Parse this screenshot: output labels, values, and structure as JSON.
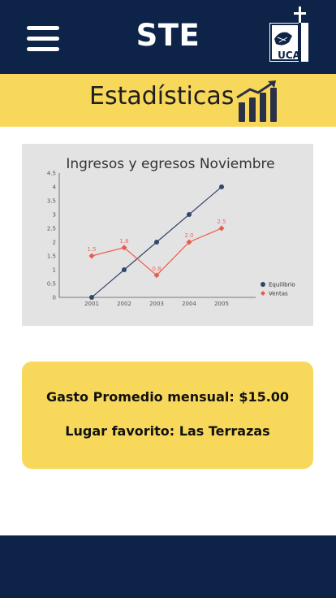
{
  "header": {
    "title": "STE",
    "logo_text": "UCA",
    "colors": {
      "navy": "#0d2347",
      "yellow": "#f8d85b"
    }
  },
  "section": {
    "title": "Estadísticas",
    "icon": "bar-chart-growth-icon"
  },
  "chart_data": {
    "type": "line",
    "title": "Ingresos y egresos Noviembre",
    "categories": [
      "2001",
      "2002",
      "2003",
      "2004",
      "2005"
    ],
    "ylim": [
      0,
      4.5
    ],
    "yticks": [
      "0",
      "0.5",
      "1",
      "1.5",
      "2",
      "2.5",
      "3",
      "3.5",
      "4",
      "4.5"
    ],
    "grid": false,
    "legend": "right",
    "series": [
      {
        "name": "Equilibrio",
        "values": [
          0,
          1,
          2,
          3,
          4
        ],
        "color": "#34466a",
        "labels": false
      },
      {
        "name": "Ventas",
        "values": [
          1.5,
          1.8,
          0.8,
          2.0,
          2.5
        ],
        "color": "#ee5a4a",
        "labels": [
          "1.5",
          "1.8",
          "0.8",
          "2.0",
          "2.5"
        ]
      }
    ]
  },
  "summary": {
    "avg_spend": "Gasto Promedio mensual: $15.00",
    "favorite_place": "Lugar favorito: Las Terrazas"
  }
}
